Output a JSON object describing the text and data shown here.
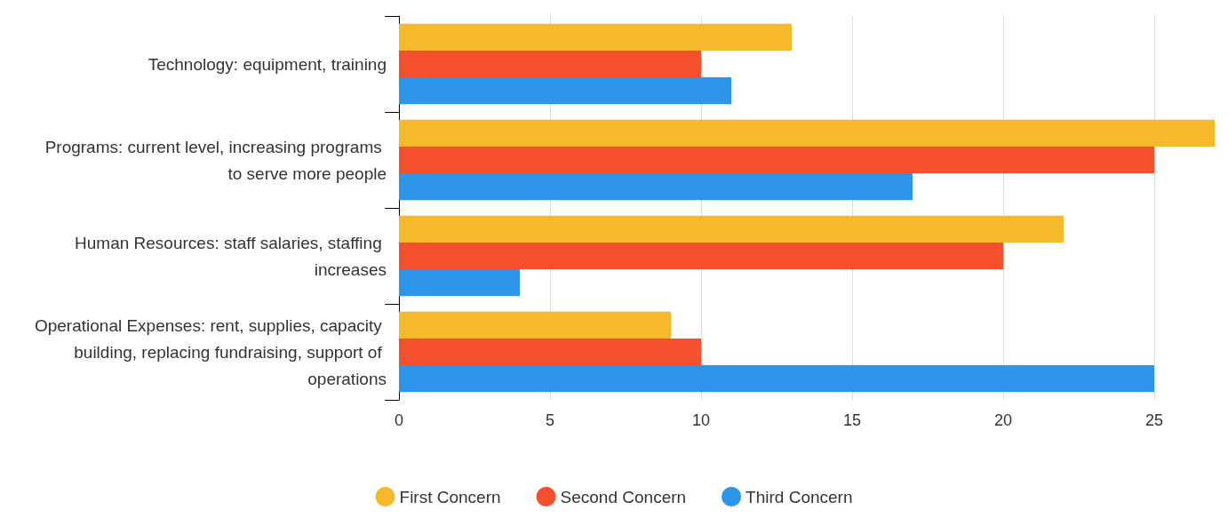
{
  "chart_data": {
    "type": "bar",
    "orientation": "horizontal",
    "categories": [
      "Technology: equipment, training",
      "Programs: current level, increasing programs to serve more people",
      "Human Resources: staff salaries, staffing increases",
      "Operational Expenses: rent, supplies, capacity building, replacing fundraising, support of operations"
    ],
    "series": [
      {
        "name": "First Concern",
        "color": "#f6b92b",
        "values": [
          13,
          27,
          22,
          9
        ]
      },
      {
        "name": "Second Concern",
        "color": "#f4502e",
        "values": [
          10,
          25,
          20,
          10
        ]
      },
      {
        "name": "Third Concern",
        "color": "#2e96ea",
        "values": [
          11,
          17,
          4,
          25
        ]
      }
    ],
    "xlim": [
      0,
      27
    ],
    "xticks": [
      0,
      5,
      10,
      15,
      20,
      25
    ],
    "grid": "x",
    "legend": "bottom"
  }
}
